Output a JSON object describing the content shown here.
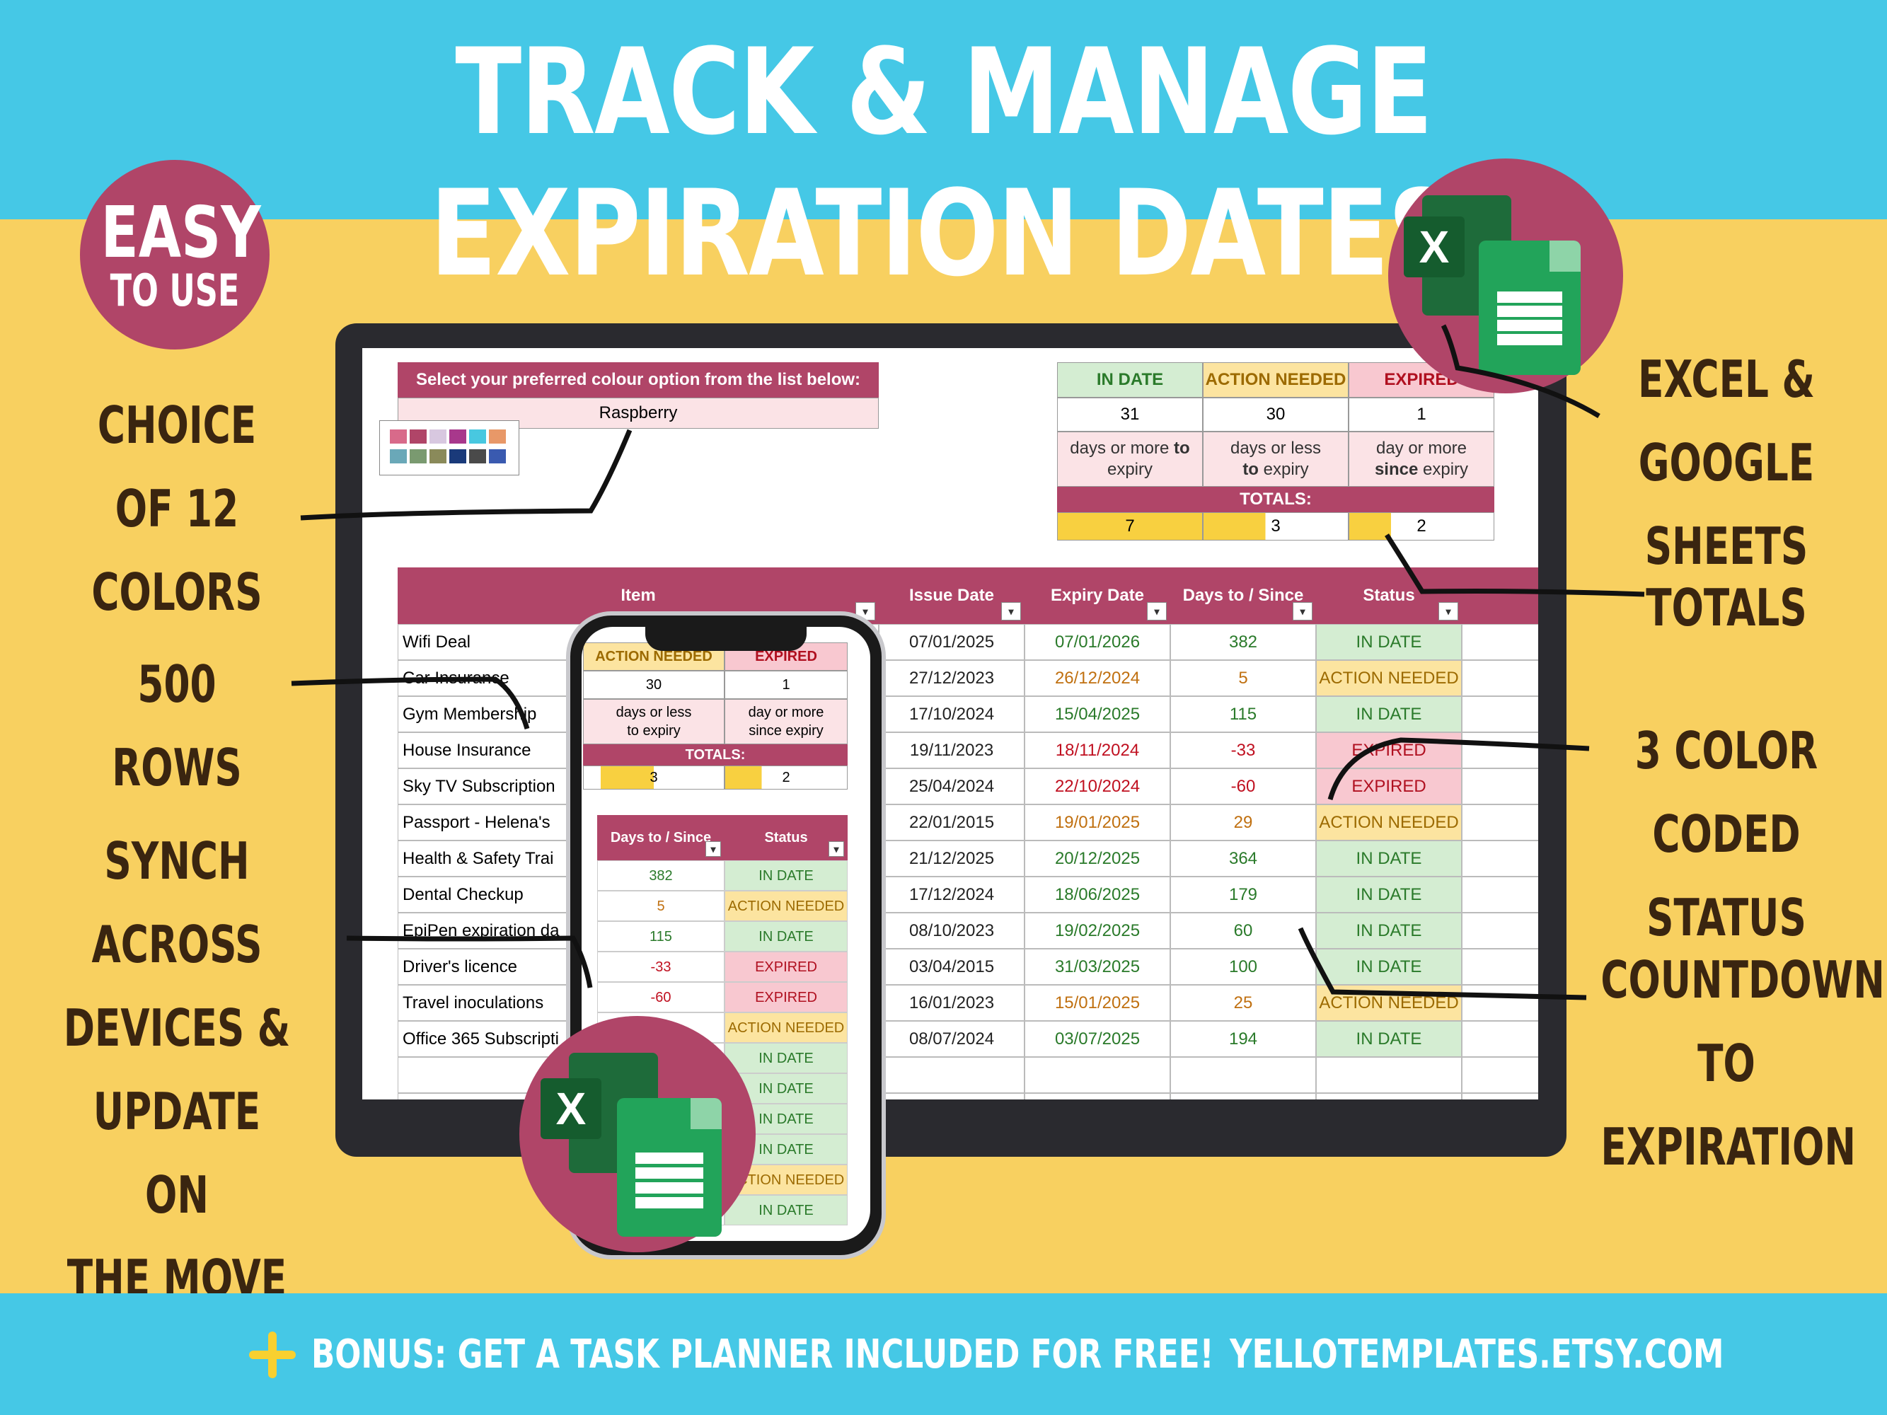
{
  "headline": "TRACK & MANAGE EXPIRATION DATES",
  "badge": {
    "big": "EASY",
    "small": "TO USE"
  },
  "callouts": {
    "colors": [
      "CHOICE OF 12",
      "COLORS"
    ],
    "rows": [
      "500 ROWS"
    ],
    "synch": [
      "SYNCH ACROSS",
      "DEVICES &",
      "UPDATE ON",
      "THE MOVE"
    ],
    "excel": [
      "EXCEL &",
      "GOOGLE SHEETS"
    ],
    "totals": [
      "TOTALS"
    ],
    "status": [
      "3 COLOR CODED",
      "STATUS"
    ],
    "countdown": [
      "COUNTDOWN",
      "TO EXPIRATION"
    ]
  },
  "bottom": {
    "bonus": "BONUS: GET A TASK PLANNER INCLUDED FOR FREE!",
    "site": "YELLOTEMPLATES.ETSY.COM"
  },
  "logos": {
    "excel_letter": "X"
  },
  "sheet": {
    "select_label": "Select your preferred colour option from the list below:",
    "selected_colour": "Raspberry",
    "swatches": [
      "#D86A8A",
      "#B04568",
      "#D8C8E0",
      "#A8388C",
      "#48C8E0",
      "#E89868",
      "#6AA8B8",
      "#7A9A70",
      "#8A8A5A",
      "#1A3A7A",
      "#4A4A4A",
      "#3A5AB0"
    ],
    "summary": {
      "in_date": {
        "label": "IN DATE",
        "count": "31",
        "desc1": "days or more",
        "desc1b": "to",
        "desc2": "expiry"
      },
      "action": {
        "label": "ACTION NEEDED",
        "count": "30",
        "desc1": "days or less",
        "desc2b": "to",
        "desc2": "expiry"
      },
      "expired": {
        "label": "EXPIRED",
        "count": "1",
        "desc1": "day or more",
        "desc2b": "since",
        "desc2": "expiry"
      },
      "totals_label": "TOTALS:",
      "totals": [
        "7",
        "3",
        "2"
      ]
    },
    "columns": [
      "Item",
      "Issue Date",
      "Expiry Date",
      "Days to / Since",
      "Status"
    ],
    "rows": [
      {
        "item": "Wifi Deal",
        "issue": "07/01/2025",
        "expiry": "07/01/2026",
        "days": "382",
        "status": "IN DATE",
        "tone": "g"
      },
      {
        "item": "Car Insurance",
        "issue": "27/12/2023",
        "expiry": "26/12/2024",
        "days": "5",
        "status": "ACTION NEEDED",
        "tone": "o"
      },
      {
        "item": "Gym Membership",
        "issue": "17/10/2024",
        "expiry": "15/04/2025",
        "days": "115",
        "status": "IN DATE",
        "tone": "g"
      },
      {
        "item": "House Insurance",
        "issue": "19/11/2023",
        "expiry": "18/11/2024",
        "days": "-33",
        "status": "EXPIRED",
        "tone": "r"
      },
      {
        "item": "Sky TV Subscription",
        "issue": "25/04/2024",
        "expiry": "22/10/2024",
        "days": "-60",
        "status": "EXPIRED",
        "tone": "r"
      },
      {
        "item": "Passport - Helena's",
        "issue": "22/01/2015",
        "expiry": "19/01/2025",
        "days": "29",
        "status": "ACTION NEEDED",
        "tone": "o"
      },
      {
        "item": "Health & Safety Trai",
        "issue": "21/12/2025",
        "expiry": "20/12/2025",
        "days": "364",
        "status": "IN DATE",
        "tone": "g"
      },
      {
        "item": "Dental Checkup",
        "issue": "17/12/2024",
        "expiry": "18/06/2025",
        "days": "179",
        "status": "IN DATE",
        "tone": "g"
      },
      {
        "item": "EpiPen expiration da",
        "issue": "08/10/2023",
        "expiry": "19/02/2025",
        "days": "60",
        "status": "IN DATE",
        "tone": "g"
      },
      {
        "item": "Driver's licence",
        "issue": "03/04/2015",
        "expiry": "31/03/2025",
        "days": "100",
        "status": "IN DATE",
        "tone": "g"
      },
      {
        "item": "Travel inoculations",
        "issue": "16/01/2023",
        "expiry": "15/01/2025",
        "days": "25",
        "status": "ACTION NEEDED",
        "tone": "o"
      },
      {
        "item": "Office 365 Subscripti",
        "issue": "08/07/2024",
        "expiry": "03/07/2025",
        "days": "194",
        "status": "IN DATE",
        "tone": "g"
      }
    ]
  },
  "phone": {
    "summary_labels": [
      "ACTION NEEDED",
      "EXPIRED"
    ],
    "counts": [
      "30",
      "1"
    ],
    "desc": [
      [
        "days or less",
        "to expiry"
      ],
      [
        "day or more",
        "since expiry"
      ]
    ],
    "totals_label": "TOTALS:",
    "totals": [
      "3",
      "2"
    ],
    "columns": [
      "Days to / Since",
      "Status"
    ],
    "rows": [
      {
        "days": "382",
        "status": "IN DATE",
        "tone": "g"
      },
      {
        "days": "5",
        "status": "ACTION NEEDED",
        "tone": "o"
      },
      {
        "days": "115",
        "status": "IN DATE",
        "tone": "g"
      },
      {
        "days": "-33",
        "status": "EXPIRED",
        "tone": "r"
      },
      {
        "days": "-60",
        "status": "EXPIRED",
        "tone": "r"
      },
      {
        "days": "",
        "status": "ACTION NEEDED",
        "tone": "o"
      },
      {
        "days": "",
        "status": "IN DATE",
        "tone": "g"
      },
      {
        "days": "",
        "status": "IN DATE",
        "tone": "g"
      },
      {
        "days": "",
        "status": "IN DATE",
        "tone": "g"
      },
      {
        "days": "",
        "status": "IN DATE",
        "tone": "g"
      },
      {
        "days": "",
        "status": "ACTION NEEDED",
        "tone": "o"
      },
      {
        "days": "",
        "status": "IN DATE",
        "tone": "g"
      }
    ]
  }
}
